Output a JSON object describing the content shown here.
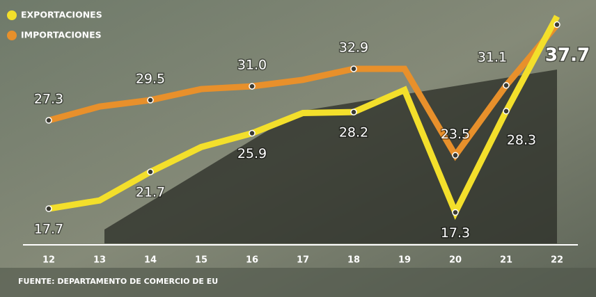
{
  "chart_data": {
    "type": "line",
    "categories": [
      "12",
      "13",
      "14",
      "15",
      "16",
      "17",
      "18",
      "19",
      "20",
      "21",
      "22"
    ],
    "series": [
      {
        "name": "EXPORTACIONES",
        "color": "#f3df2b",
        "values": [
          17.7,
          18.6,
          21.7,
          24.4,
          25.9,
          28.1,
          28.2,
          30.6,
          17.3,
          28.3,
          38.6
        ],
        "value_labels": [
          "17.7",
          null,
          "21.7",
          null,
          "25.9",
          null,
          "28.2",
          null,
          "17.3",
          "28.3",
          null
        ]
      },
      {
        "name": "IMPORTACIONES",
        "color": "#e8902b",
        "values": [
          27.3,
          28.8,
          29.5,
          30.7,
          31.0,
          31.7,
          32.9,
          32.9,
          23.5,
          31.1,
          37.7
        ],
        "value_labels": [
          "27.3",
          null,
          "29.5",
          null,
          "31.0",
          null,
          "32.9",
          null,
          "23.5",
          "31.1",
          "37.7"
        ]
      }
    ],
    "ylim": [
      14,
      40
    ],
    "legend": "top-left",
    "source": "FUENTE: DEPARTAMENTO DE COMERCIO DE EU"
  }
}
